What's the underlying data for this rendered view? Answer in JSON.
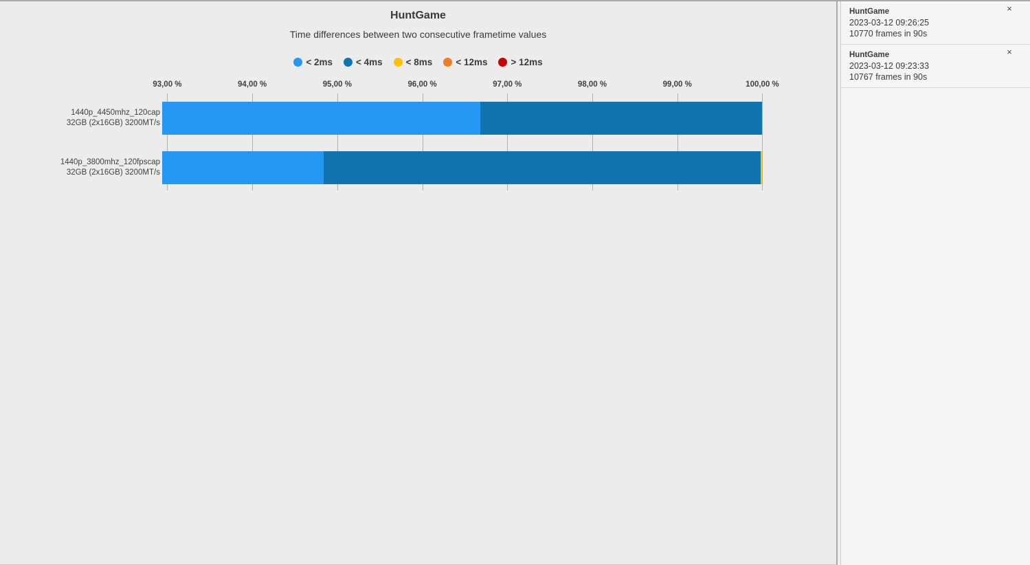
{
  "chart_data": {
    "type": "bar",
    "orientation": "horizontal",
    "stacked": true,
    "title": "HuntGame",
    "subtitle": "Time differences between two consecutive frametime values",
    "xlabel": "",
    "ylabel": "",
    "x_unit": "%",
    "xlim": [
      92.94,
      100.19
    ],
    "grid": true,
    "legend_position": "top-center",
    "x_ticks": [
      93,
      94,
      95,
      96,
      97,
      98,
      99,
      100
    ],
    "x_tick_labels": [
      "93,00 %",
      "94,00 %",
      "95,00 %",
      "96,00 %",
      "97,00 %",
      "98,00 %",
      "99,00 %",
      "100,00 %"
    ],
    "legend": [
      {
        "label": "< 2ms",
        "color": "#2697F3"
      },
      {
        "label": "< 4ms",
        "color": "#1274AE"
      },
      {
        "label": "< 8ms",
        "color": "#FFC107"
      },
      {
        "label": "< 12ms",
        "color": "#EF7D23"
      },
      {
        "label": "> 12ms",
        "color": "#CB0000"
      }
    ],
    "bars": [
      {
        "label_lines": [
          "1440p_4450mhz_120cap",
          "32GB (2x16GB) 3200MT/s"
        ],
        "segments": [
          {
            "bucket": "< 2ms",
            "cumulative_to": 96.68
          },
          {
            "bucket": "< 4ms",
            "cumulative_to": 100.0
          }
        ]
      },
      {
        "label_lines": [
          "1440p_3800mhz_120fpscap",
          "32GB (2x16GB) 3200MT/s"
        ],
        "segments": [
          {
            "bucket": "< 2ms",
            "cumulative_to": 94.84
          },
          {
            "bucket": "< 4ms",
            "cumulative_to": 99.98
          },
          {
            "bucket": "< 8ms",
            "cumulative_to": 100.0
          }
        ]
      }
    ]
  },
  "sidebar": {
    "cards": [
      {
        "title": "HuntGame",
        "datetime": "2023-03-12 09:26:25",
        "frames": "10770 frames in 90s",
        "close_label": "×"
      },
      {
        "title": "HuntGame",
        "datetime": "2023-03-12 09:23:33",
        "frames": "10767 frames in 90s",
        "close_label": "×"
      }
    ]
  }
}
